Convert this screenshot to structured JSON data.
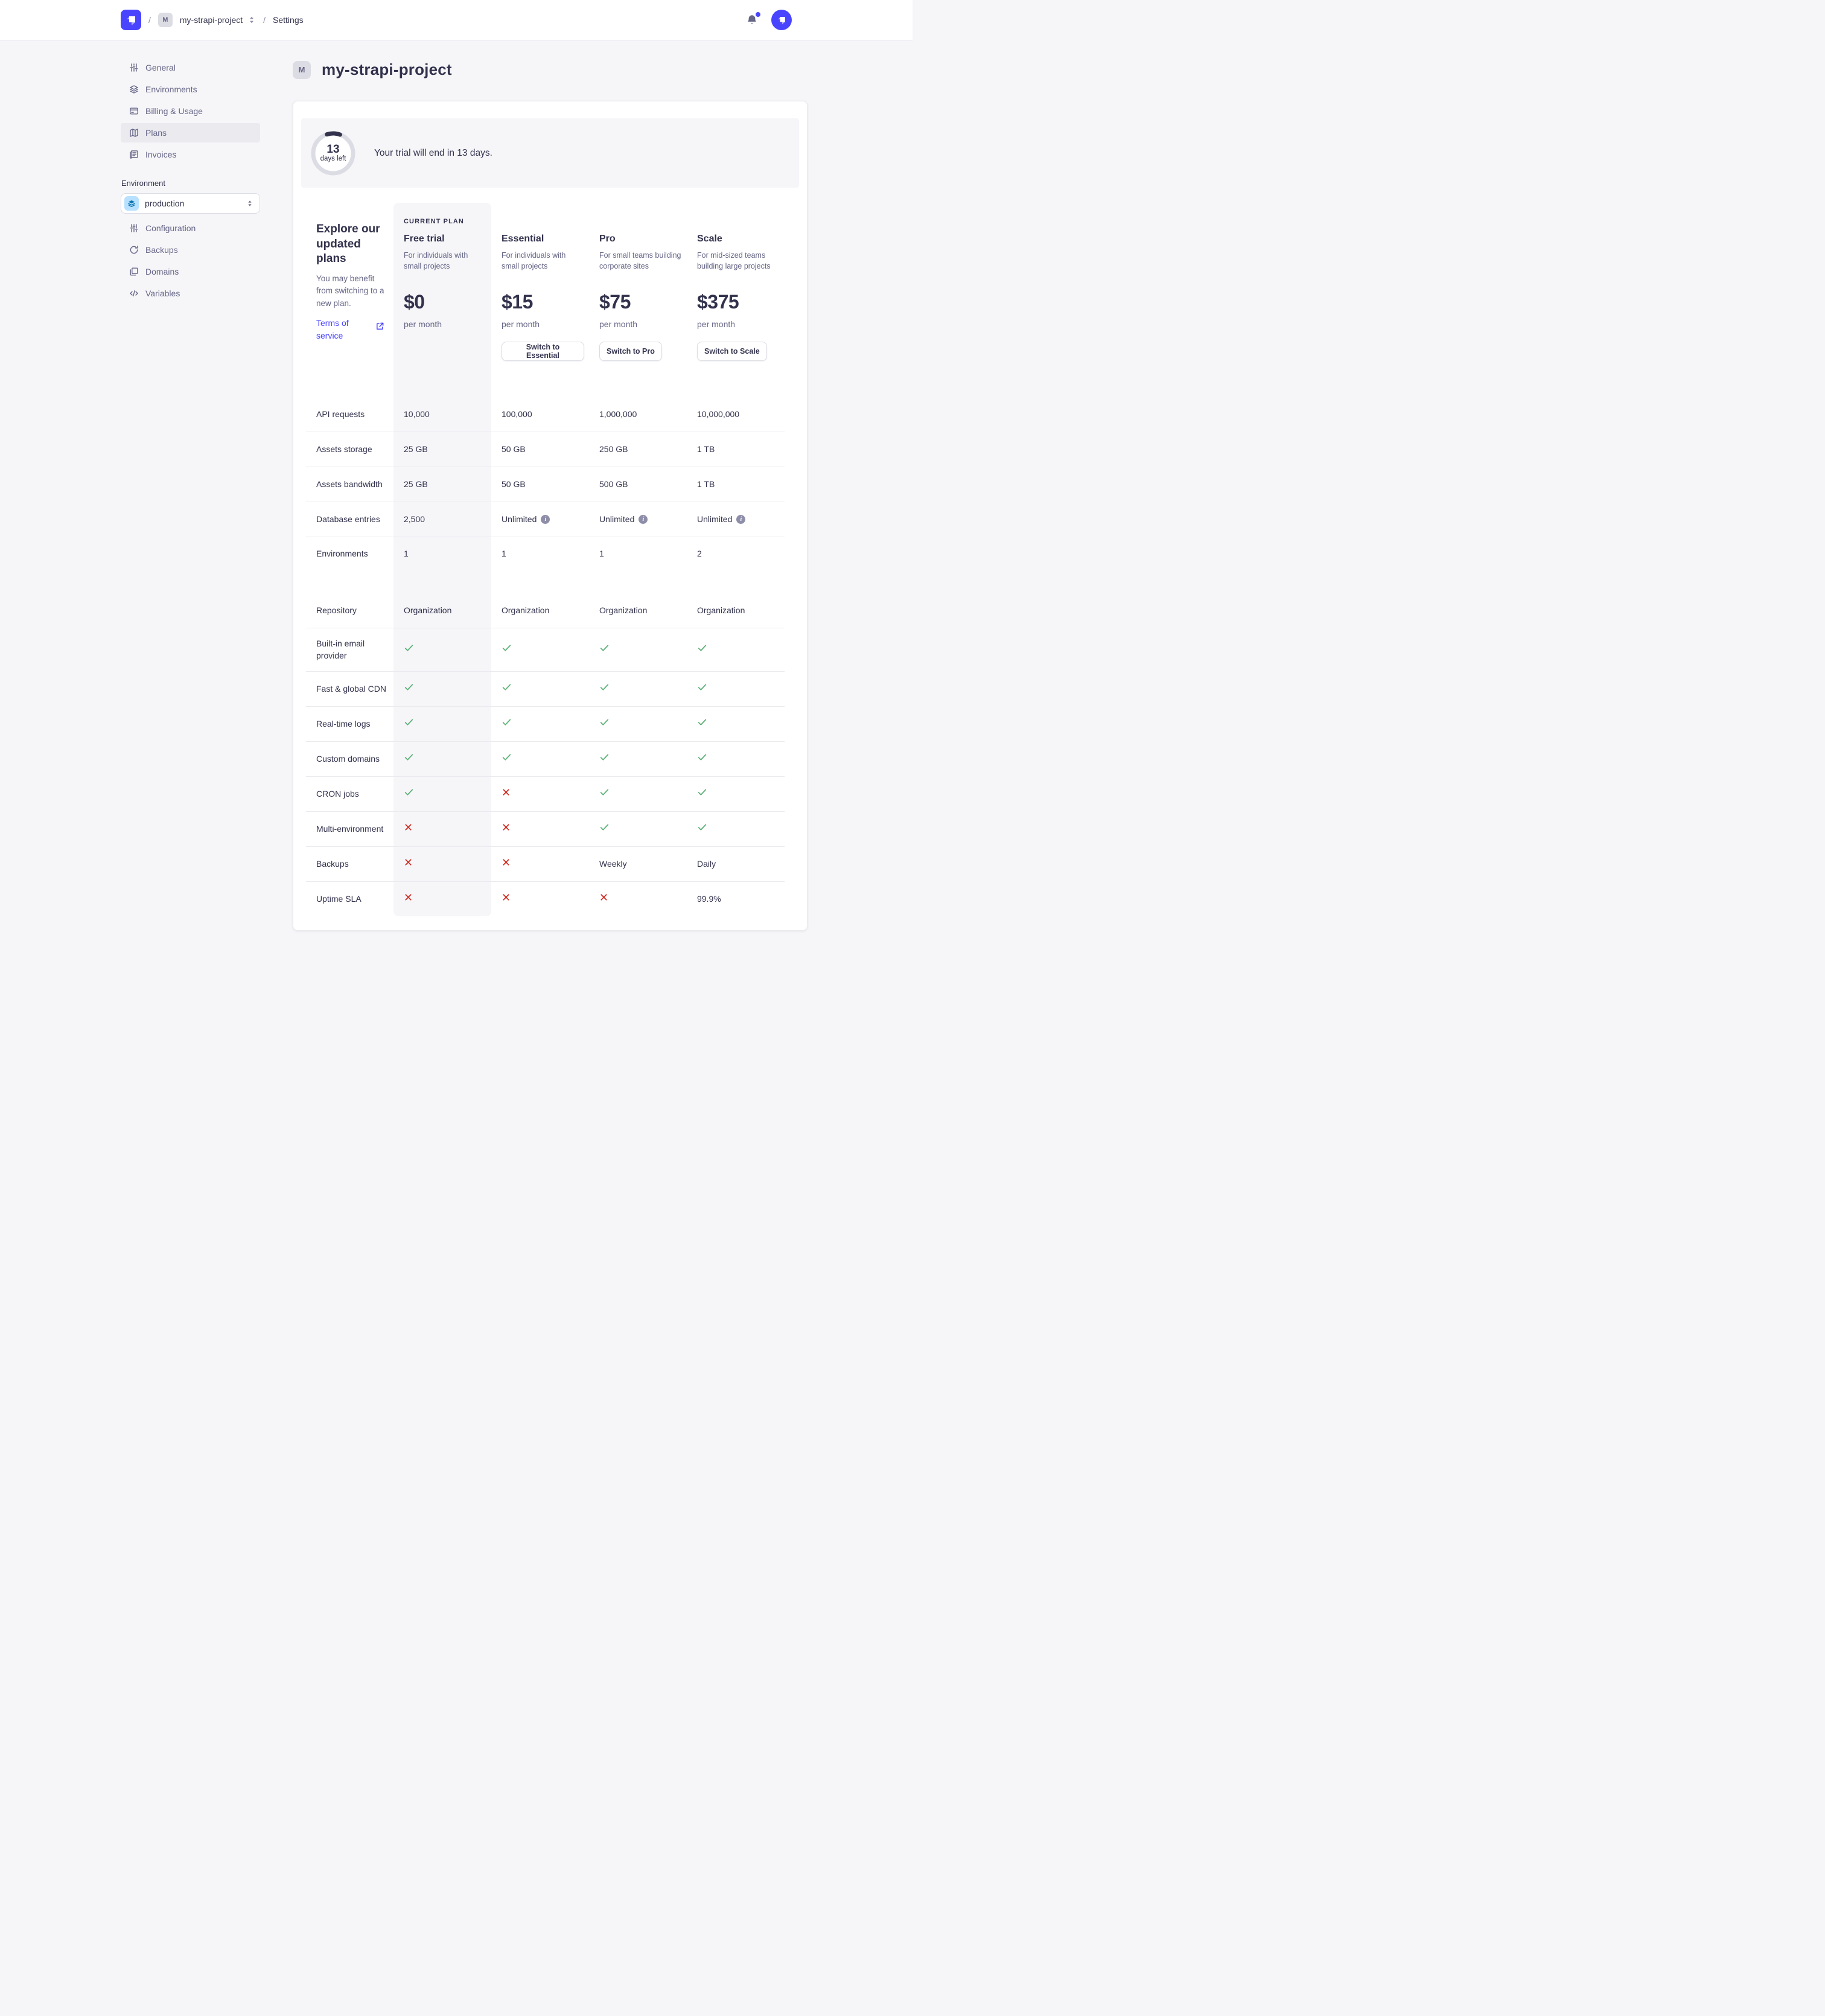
{
  "header": {
    "breadcrumb": {
      "separator": "/",
      "project_badge": "M",
      "project": "my-strapi-project",
      "section": "Settings"
    }
  },
  "sidebar": {
    "project_items": [
      {
        "label": "General",
        "icon": "sliders-icon",
        "active": false
      },
      {
        "label": "Environments",
        "icon": "layers-icon",
        "active": false
      },
      {
        "label": "Billing & Usage",
        "icon": "credit-card-icon",
        "active": false
      },
      {
        "label": "Plans",
        "icon": "map-icon",
        "active": true
      },
      {
        "label": "Invoices",
        "icon": "invoice-icon",
        "active": false
      }
    ],
    "environment": {
      "label": "Environment",
      "selected": "production",
      "items": [
        {
          "label": "Configuration",
          "icon": "sliders-icon"
        },
        {
          "label": "Backups",
          "icon": "refresh-icon"
        },
        {
          "label": "Domains",
          "icon": "folder-icon"
        },
        {
          "label": "Variables",
          "icon": "code-icon"
        }
      ]
    }
  },
  "main": {
    "project_badge": "M",
    "title": "my-strapi-project",
    "trial_banner": {
      "days_number": "13",
      "days_label": "days left",
      "message": "Your trial will end in 13 days."
    },
    "intro": {
      "heading_line1": "Explore our",
      "heading_line2": "updated plans",
      "description": "You may benefit from switching to a new plan.",
      "link_label": "Terms of service"
    },
    "plans": [
      {
        "badge": "CURRENT PLAN",
        "name": "Free trial",
        "description": "For individuals with small projects",
        "price": "$0",
        "period": "per month",
        "button": null,
        "current": true
      },
      {
        "badge": null,
        "name": "Essential",
        "description": "For individuals with small projects",
        "price": "$15",
        "period": "per month",
        "button": "Switch to Essential",
        "current": false
      },
      {
        "badge": null,
        "name": "Pro",
        "description": "For small teams building corporate sites",
        "price": "$75",
        "period": "per month",
        "button": "Switch to Pro",
        "current": false
      },
      {
        "badge": null,
        "name": "Scale",
        "description": "For mid-sized teams building large projects",
        "price": "$375",
        "period": "per month",
        "button": "Switch to Scale",
        "current": false
      }
    ],
    "features": [
      {
        "label": "API requests",
        "values": [
          {
            "text": "10,000"
          },
          {
            "text": "100,000"
          },
          {
            "text": "1,000,000"
          },
          {
            "text": "10,000,000"
          }
        ]
      },
      {
        "label": "Assets storage",
        "values": [
          {
            "text": "25 GB"
          },
          {
            "text": "50 GB"
          },
          {
            "text": "250 GB"
          },
          {
            "text": "1 TB"
          }
        ]
      },
      {
        "label": "Assets bandwidth",
        "values": [
          {
            "text": "25 GB"
          },
          {
            "text": "50 GB"
          },
          {
            "text": "500 GB"
          },
          {
            "text": "1 TB"
          }
        ]
      },
      {
        "label": "Database entries",
        "values": [
          {
            "text": "2,500"
          },
          {
            "text": "Unlimited",
            "icon": "info"
          },
          {
            "text": "Unlimited",
            "icon": "info"
          },
          {
            "text": "Unlimited",
            "icon": "info"
          }
        ]
      },
      {
        "type": "double",
        "rows": [
          {
            "label": "Environments",
            "values": [
              {
                "text": "1"
              },
              {
                "text": "1"
              },
              {
                "text": "1"
              },
              {
                "text": "2"
              }
            ]
          },
          {
            "label": "Repository",
            "values": [
              {
                "text": "Organization"
              },
              {
                "text": "Organization"
              },
              {
                "text": "Organization"
              },
              {
                "text": "Organization"
              }
            ]
          }
        ]
      },
      {
        "label": "Built-in email provider",
        "tall": true,
        "values": [
          {
            "icon": "check"
          },
          {
            "icon": "check"
          },
          {
            "icon": "check"
          },
          {
            "icon": "check"
          }
        ]
      },
      {
        "label": "Fast & global CDN",
        "values": [
          {
            "icon": "check"
          },
          {
            "icon": "check"
          },
          {
            "icon": "check"
          },
          {
            "icon": "check"
          }
        ]
      },
      {
        "label": "Real-time logs",
        "values": [
          {
            "icon": "check"
          },
          {
            "icon": "check"
          },
          {
            "icon": "check"
          },
          {
            "icon": "check"
          }
        ]
      },
      {
        "label": "Custom domains",
        "values": [
          {
            "icon": "check"
          },
          {
            "icon": "check"
          },
          {
            "icon": "check"
          },
          {
            "icon": "check"
          }
        ]
      },
      {
        "label": "CRON jobs",
        "values": [
          {
            "icon": "check"
          },
          {
            "icon": "cross"
          },
          {
            "icon": "check"
          },
          {
            "icon": "check"
          }
        ]
      },
      {
        "label": "Multi-environment",
        "values": [
          {
            "icon": "cross"
          },
          {
            "icon": "cross"
          },
          {
            "icon": "check"
          },
          {
            "icon": "check"
          }
        ]
      },
      {
        "label": "Backups",
        "values": [
          {
            "icon": "cross"
          },
          {
            "icon": "cross"
          },
          {
            "text": "Weekly"
          },
          {
            "text": "Daily"
          }
        ]
      },
      {
        "label": "Uptime SLA",
        "values": [
          {
            "icon": "cross"
          },
          {
            "icon": "cross"
          },
          {
            "icon": "cross"
          },
          {
            "text": "99.9%"
          }
        ]
      }
    ]
  },
  "colors": {
    "accent": "#4945ff",
    "success": "#5cb176",
    "danger": "#d02b20",
    "text_dark": "#32324d",
    "text_muted": "#666687",
    "surface_gray": "#f6f6f9",
    "divider": "#eaeaef"
  }
}
